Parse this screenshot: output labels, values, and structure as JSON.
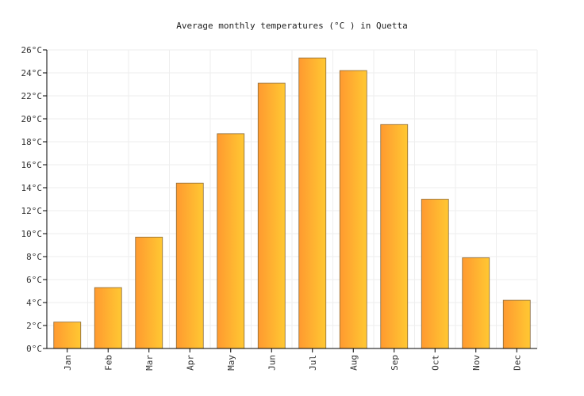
{
  "chart_data": {
    "type": "bar",
    "title": "Average monthly temperatures (°C ) in Quetta",
    "xlabel": "",
    "ylabel": "",
    "categories": [
      "Jan",
      "Feb",
      "Mar",
      "Apr",
      "May",
      "Jun",
      "Jul",
      "Aug",
      "Sep",
      "Oct",
      "Nov",
      "Dec"
    ],
    "values": [
      2.3,
      5.3,
      9.7,
      14.4,
      18.7,
      23.1,
      25.3,
      24.2,
      19.5,
      13.0,
      7.9,
      4.2
    ],
    "ylim": [
      0,
      26
    ],
    "yticks": [
      "0°C",
      "2°C",
      "4°C",
      "6°C",
      "8°C",
      "10°C",
      "12°C",
      "14°C",
      "16°C",
      "18°C",
      "20°C",
      "22°C",
      "24°C",
      "26°C"
    ],
    "grid": true,
    "colors": {
      "bar_left": "#ff9a30",
      "bar_right": "#ffc832",
      "bar_stroke": "#8a6a3a"
    }
  }
}
